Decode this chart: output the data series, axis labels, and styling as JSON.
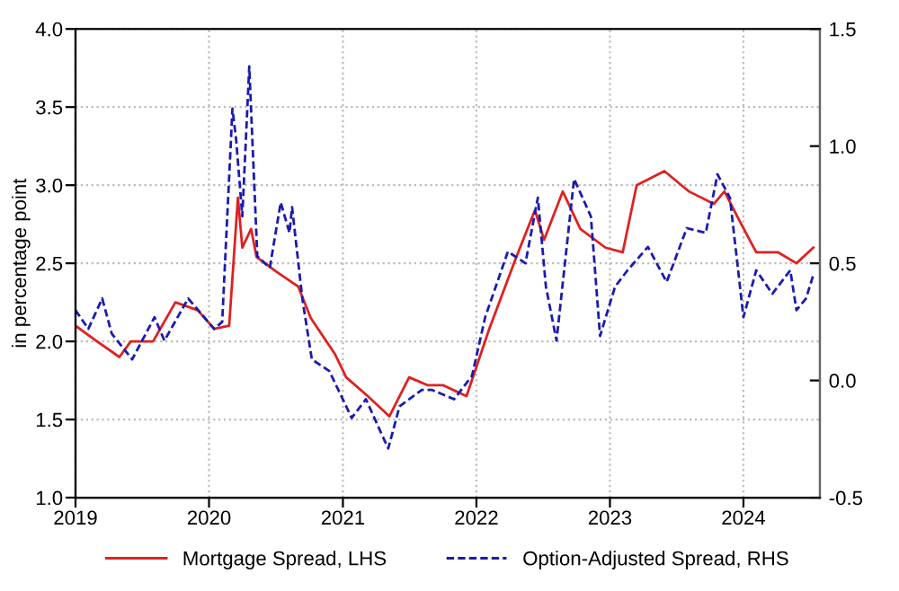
{
  "chart_data": {
    "type": "line",
    "ylabel": "in percentage point",
    "xlim": [
      "2019-01-01",
      "2024-07-28"
    ],
    "xticks": [
      {
        "value": "2019-01-01",
        "label": "2019"
      },
      {
        "value": "2020-01-01",
        "label": "2020"
      },
      {
        "value": "2021-01-01",
        "label": "2021"
      },
      {
        "value": "2022-01-01",
        "label": "2022"
      },
      {
        "value": "2023-01-01",
        "label": "2023"
      },
      {
        "value": "2024-01-01",
        "label": "2024"
      }
    ],
    "ylim": [
      1.0,
      4.0
    ],
    "yticks": [
      {
        "value": 1,
        "label": "1.0"
      },
      1.5,
      {
        "value": 2,
        "label": "2.0"
      },
      2.5,
      {
        "value": 3,
        "label": "3.0"
      },
      3.5,
      {
        "value": 4,
        "label": "4.0"
      }
    ],
    "y2lim": [
      -0.5,
      1.5
    ],
    "y2ticks": [
      -0.5,
      {
        "value": 0,
        "label": "0.0"
      },
      0.5,
      {
        "value": 1,
        "label": "1.0"
      },
      1.5
    ],
    "grid": true,
    "legend": "bottom",
    "series": [
      {
        "name": "Mortgage Spread, LHS",
        "color": "#e02020",
        "line_style": "solid",
        "x": [
          "2019-01-01",
          "2019-03-01",
          "2019-05-01",
          "2019-06-01",
          "2019-08-01",
          "2019-10-01",
          "2019-12-01",
          "2020-01-15",
          "2020-02-25",
          "2020-03-20",
          "2020-04-01",
          "2020-04-25",
          "2020-05-10",
          "2020-07-01",
          "2020-09-01",
          "2020-10-05",
          "2020-12-10",
          "2021-01-10",
          "2021-03-10",
          "2021-05-08",
          "2021-07-01",
          "2021-08-20",
          "2021-10-01",
          "2021-12-05",
          "2022-02-05",
          "2022-04-20",
          "2022-06-10",
          "2022-07-05",
          "2022-08-25",
          "2022-10-12",
          "2022-12-20",
          "2023-02-05",
          "2023-03-15",
          "2023-05-30",
          "2023-08-05",
          "2023-10-12",
          "2023-11-10",
          "2023-12-15",
          "2024-02-05",
          "2024-04-05",
          "2024-05-25",
          "2024-07-10"
        ],
        "values": [
          2.1,
          2.0,
          1.9,
          2.0,
          2.0,
          2.25,
          2.2,
          2.08,
          2.1,
          2.92,
          2.6,
          2.72,
          2.54,
          2.45,
          2.35,
          2.15,
          1.92,
          1.77,
          1.65,
          1.52,
          1.77,
          1.72,
          1.72,
          1.65,
          2.08,
          2.54,
          2.84,
          2.65,
          2.96,
          2.72,
          2.6,
          2.57,
          3.0,
          3.09,
          2.96,
          2.88,
          2.96,
          2.8,
          2.57,
          2.57,
          2.5,
          2.6
        ]
      },
      {
        "name": "Option-Adjusted Spread, RHS",
        "color": "#1a1ab0",
        "line_style": "dashed",
        "axis": "y2",
        "x": [
          "2019-01-01",
          "2019-02-05",
          "2019-03-15",
          "2019-04-10",
          "2019-06-05",
          "2019-08-05",
          "2019-09-01",
          "2019-11-05",
          "2020-01-15",
          "2020-02-06",
          "2020-03-05",
          "2020-03-15",
          "2020-04-01",
          "2020-04-20",
          "2020-05-12",
          "2020-06-15",
          "2020-07-15",
          "2020-08-08",
          "2020-08-15",
          "2020-09-12",
          "2020-10-08",
          "2020-11-25",
          "2021-01-25",
          "2021-03-05",
          "2021-04-20",
          "2021-05-05",
          "2021-06-05",
          "2021-08-05",
          "2021-09-01",
          "2021-11-01",
          "2021-12-20",
          "2022-01-25",
          "2022-03-28",
          "2022-05-15",
          "2022-06-18",
          "2022-07-10",
          "2022-08-08",
          "2022-09-25",
          "2022-11-10",
          "2022-12-05",
          "2023-01-15",
          "2023-02-18",
          "2023-04-15",
          "2023-06-05",
          "2023-07-30",
          "2023-09-20",
          "2023-10-22",
          "2023-11-25",
          "2024-01-01",
          "2024-02-05",
          "2024-03-20",
          "2024-05-08",
          "2024-05-25",
          "2024-06-20",
          "2024-07-10"
        ],
        "values": [
          0.3,
          0.22,
          0.35,
          0.2,
          0.09,
          0.27,
          0.17,
          0.35,
          0.22,
          0.25,
          1.16,
          1.03,
          0.7,
          1.34,
          0.53,
          0.48,
          0.76,
          0.63,
          0.74,
          0.35,
          0.09,
          0.04,
          -0.16,
          -0.08,
          -0.24,
          -0.29,
          -0.11,
          -0.04,
          -0.04,
          -0.08,
          0.02,
          0.27,
          0.55,
          0.5,
          0.78,
          0.4,
          0.17,
          0.86,
          0.7,
          0.19,
          0.4,
          0.47,
          0.57,
          0.42,
          0.65,
          0.63,
          0.88,
          0.78,
          0.27,
          0.47,
          0.37,
          0.47,
          0.3,
          0.35,
          0.45
        ]
      }
    ]
  }
}
